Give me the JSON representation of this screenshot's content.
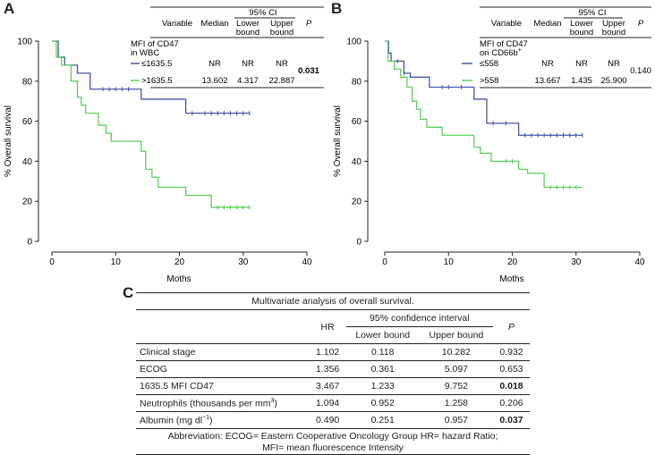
{
  "panels": {
    "a": "A",
    "b": "B",
    "c": "C"
  },
  "chart_data": [
    {
      "type": "line",
      "subtype": "kaplan-meier",
      "panel": "A",
      "xlabel": "Moths",
      "ylabel": "% Overall survival",
      "xlim": [
        0,
        40
      ],
      "ylim": [
        0,
        100
      ],
      "xticks": [
        0,
        10,
        20,
        30,
        40
      ],
      "yticks": [
        0,
        20,
        40,
        60,
        80,
        100
      ],
      "series": [
        {
          "name": "≤1635.5",
          "color": "#4456a6",
          "steps": [
            [
              0,
              100
            ],
            [
              1,
              92
            ],
            [
              2,
              88
            ],
            [
              4,
              84
            ],
            [
              6,
              76
            ],
            [
              14,
              71
            ],
            [
              21,
              64
            ],
            [
              31,
              64
            ]
          ],
          "censors": [
            8,
            9,
            10,
            11,
            12,
            22,
            24,
            25,
            26,
            27,
            28,
            29,
            30,
            31
          ]
        },
        {
          "name": ">1635.5",
          "color": "#5ccf5c",
          "steps": [
            [
              0,
              100
            ],
            [
              0.7,
              92
            ],
            [
              1.5,
              88
            ],
            [
              3,
              80
            ],
            [
              4,
              72
            ],
            [
              4.6,
              68
            ],
            [
              5.3,
              64
            ],
            [
              7.3,
              58
            ],
            [
              8.5,
              54
            ],
            [
              9.3,
              50
            ],
            [
              14,
              45
            ],
            [
              14.7,
              36
            ],
            [
              15.7,
              32
            ],
            [
              16.7,
              27
            ],
            [
              21,
              23
            ],
            [
              25,
              17
            ],
            [
              31,
              17
            ]
          ],
          "censors": [
            26,
            27,
            28,
            29,
            30,
            31
          ]
        }
      ],
      "table": {
        "headers": {
          "variable": "Variable",
          "median": "Median",
          "ci": "95% CI",
          "lower": "Lower bound",
          "upper": "Upper bound",
          "p": "P"
        },
        "group_label": "MFI of CD47 in WBC",
        "rows": [
          {
            "variable": "≤1635.5",
            "median": "NR",
            "lower": "NR",
            "upper": "NR"
          },
          {
            "variable": ">1635.5",
            "median": "13.602",
            "lower": "4.317",
            "upper": "22.887"
          }
        ],
        "p_value": "0.031"
      }
    },
    {
      "type": "line",
      "subtype": "kaplan-meier",
      "panel": "B",
      "xlabel": "Moths",
      "ylabel": "% Overall survival",
      "xlim": [
        0,
        40
      ],
      "ylim": [
        0,
        100
      ],
      "xticks": [
        0,
        10,
        20,
        30,
        40
      ],
      "yticks": [
        0,
        20,
        40,
        60,
        80,
        100
      ],
      "series": [
        {
          "name": "≤558",
          "color": "#4456a6",
          "steps": [
            [
              0,
              100
            ],
            [
              0.6,
              94
            ],
            [
              1,
              90
            ],
            [
              3,
              84
            ],
            [
              4,
              82
            ],
            [
              7,
              77
            ],
            [
              14,
              71
            ],
            [
              16,
              59
            ],
            [
              21,
              53
            ],
            [
              31,
              53
            ]
          ],
          "censors": [
            2,
            3,
            9,
            10,
            12,
            17,
            19,
            22,
            23,
            24,
            25,
            26,
            27,
            28,
            29,
            30,
            31
          ]
        },
        {
          "name": ">558",
          "color": "#5ccf5c",
          "steps": [
            [
              0,
              100
            ],
            [
              0.5,
              90
            ],
            [
              1.5,
              86
            ],
            [
              2.5,
              82
            ],
            [
              3.5,
              77
            ],
            [
              4.3,
              70
            ],
            [
              5,
              66
            ],
            [
              5.6,
              61
            ],
            [
              6.6,
              57
            ],
            [
              9,
              53
            ],
            [
              14,
              47
            ],
            [
              15,
              44
            ],
            [
              16.7,
              40
            ],
            [
              21,
              36
            ],
            [
              22.4,
              34
            ],
            [
              25,
              27
            ],
            [
              31,
              27
            ]
          ],
          "censors": [
            19,
            20,
            26,
            27,
            28,
            29,
            30
          ]
        }
      ],
      "table": {
        "headers": {
          "variable": "Variable",
          "median": "Median",
          "ci": "95% CI",
          "lower": "Lower bound",
          "upper": "Upper bound",
          "p": "P"
        },
        "group_label": "MFI of CD47 on CD66b",
        "group_sup": "+",
        "rows": [
          {
            "variable": "≤558",
            "median": "NR",
            "lower": "NR",
            "upper": "NR"
          },
          {
            "variable": ">558",
            "median": "13.667",
            "lower": "1.435",
            "upper": "25.900"
          }
        ],
        "p_value": "0.140"
      }
    }
  ],
  "multivariate": {
    "title": "Multivariate analysis of overall survival.",
    "headers": {
      "hr": "HR",
      "ci": "95% confidence interval",
      "lower": "Lower bound",
      "upper": "Upper bound",
      "p": "P"
    },
    "rows": [
      {
        "name": "Clinical stage",
        "hr": "1.102",
        "lower": "0.118",
        "upper": "10.282",
        "p": "0.932",
        "sig": false
      },
      {
        "name": "ECOG",
        "hr": "1.356",
        "lower": "0.361",
        "upper": "5.097",
        "p": "0.653",
        "sig": false
      },
      {
        "name": "1635.5 MFI CD47",
        "hr": "3.467",
        "lower": "1.233",
        "upper": "9.752",
        "p": "0.018",
        "sig": true
      },
      {
        "name": "Neutrophils (thousands per mm",
        "sup": "3",
        "name_end": ")",
        "hr": "1.094",
        "lower": "0.952",
        "upper": "1.258",
        "p": "0.206",
        "sig": false
      },
      {
        "name": "Albumin (mg dl",
        "sup": "−1",
        "name_end": ")",
        "hr": "0.490",
        "lower": "0.251",
        "upper": "0.957",
        "p": "0.037",
        "sig": true
      }
    ],
    "footnote_1": "Abbreviation: ECOG= Eastern Cooperative Oncology Group HR= hazard Ratio;",
    "footnote_2": "MFI= mean fluorescence Intensity"
  }
}
